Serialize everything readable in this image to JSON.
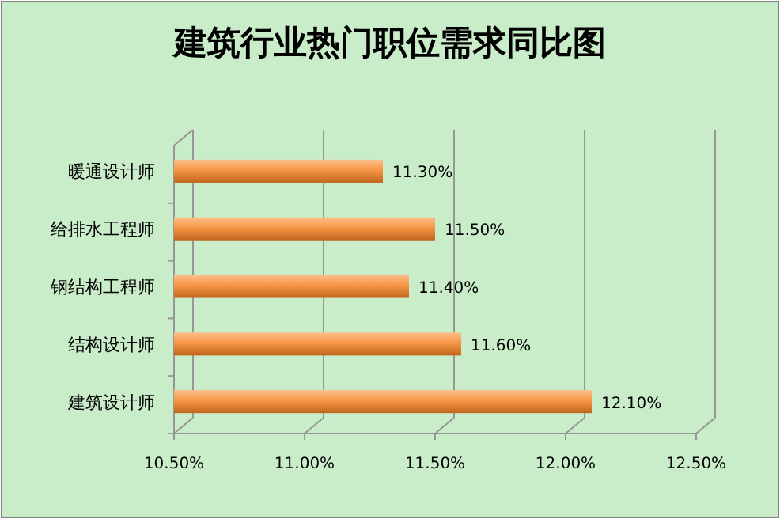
{
  "chart_data": {
    "type": "bar",
    "orientation": "horizontal",
    "title": "建筑行业热门职位需求同比图",
    "categories": [
      "暖通设计师",
      "给排水工程师",
      "钢结构工程师",
      "结构设计师",
      "建筑设计师"
    ],
    "values": [
      11.3,
      11.5,
      11.4,
      11.6,
      12.1
    ],
    "color": "#f79646",
    "value_labels": [
      "11.30%",
      "11.50%",
      "11.40%",
      "11.60%",
      "12.10%"
    ],
    "xlim": [
      10.5,
      12.5
    ],
    "xticks": [
      {
        "value": 10.5,
        "label": "10.50%"
      },
      {
        "value": 11.0,
        "label": "11.00%"
      },
      {
        "value": 11.5,
        "label": "11.50%"
      },
      {
        "value": 12.0,
        "label": "12.00%"
      },
      {
        "value": 12.5,
        "label": "12.50%"
      }
    ],
    "grid": "x"
  }
}
